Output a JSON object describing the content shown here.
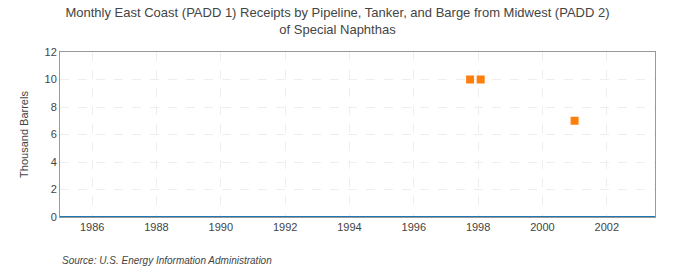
{
  "chart_data": {
    "type": "scatter",
    "title": "Monthly East Coast (PADD 1) Receipts by Pipeline, Tanker, and Barge from Midwest (PADD 2)\nof Special Naphthas",
    "ylabel": "Thousand Barrels",
    "annotations": [
      "Source: U.S. Energy Information Administration"
    ],
    "xlim": [
      1985.0,
      2003.5
    ],
    "ylim": [
      0,
      12
    ],
    "xticks": [
      1986,
      1988,
      1990,
      1992,
      1994,
      1996,
      1998,
      2000,
      2002
    ],
    "yticks": [
      0,
      2,
      4,
      6,
      8,
      10,
      12
    ],
    "grid": true,
    "series": [
      {
        "type": "line",
        "line_style": "solid",
        "x": [
          1985.0,
          2003.5
        ],
        "values": [
          0,
          0
        ]
      },
      {
        "type": "scatter",
        "marker": "square",
        "x": [
          1997.75,
          1998.08,
          2001.0
        ],
        "values": [
          10,
          10,
          7
        ]
      }
    ]
  }
}
